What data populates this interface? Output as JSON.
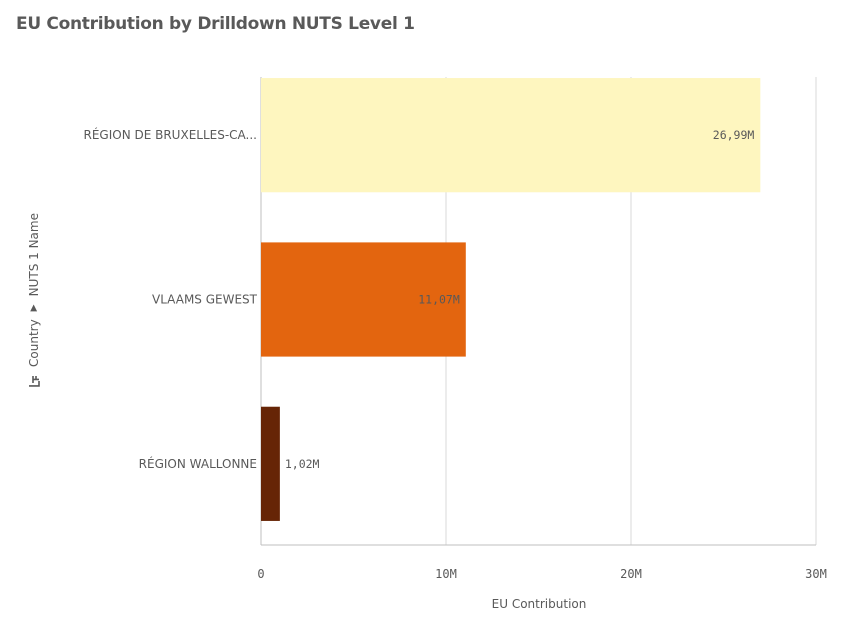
{
  "chart_data": {
    "type": "bar",
    "orientation": "horizontal",
    "title": "EU Contribution by Drilldown NUTS Level 1",
    "xlabel": "EU Contribution",
    "ylabel_path": [
      "Country",
      "NUTS 1 Name"
    ],
    "categories": [
      "RÉGION DE BRUXELLES-CA...",
      "VLAAMS GEWEST",
      "RÉGION WALLONNE"
    ],
    "values": [
      26990000,
      11070000,
      1020000
    ],
    "data_labels": [
      "26,99M",
      "11,07M",
      "1,02M"
    ],
    "colors": [
      "#fef6bf",
      "#e3650f",
      "#662506"
    ],
    "xlim": [
      0,
      30000000
    ],
    "x_ticks": [
      0,
      10000000,
      20000000,
      30000000
    ],
    "x_tick_labels": [
      "0",
      "10M",
      "20M",
      "30M"
    ],
    "grid": true
  },
  "icons": {
    "drill": "drilldown-icon",
    "separator": "triangle-right-icon"
  },
  "colors": {
    "text": "#595959",
    "grid": "#d9d9d9",
    "axis": "#bfbfbf"
  }
}
